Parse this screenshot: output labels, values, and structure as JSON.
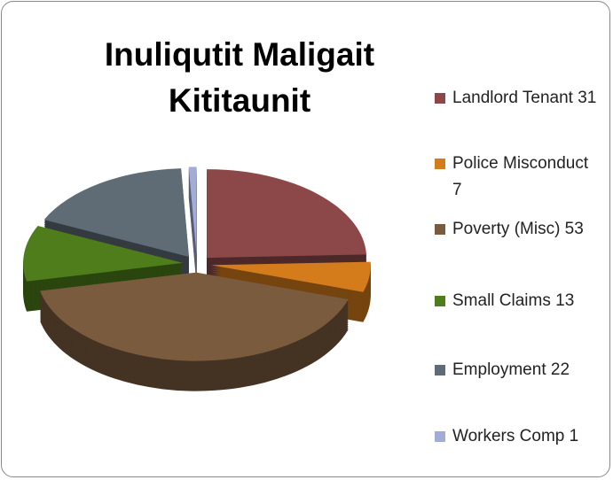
{
  "chart_data": {
    "type": "pie",
    "title": "Inuliqutit Maligait Kititaunit",
    "categories": [
      "Landlord Tenant 31",
      "Police Misconduct 7",
      "Poverty (Misc) 53",
      "Small Claims 13",
      "Employment 22",
      "Workers Comp 1"
    ],
    "values": [
      31,
      7,
      53,
      13,
      22,
      1
    ],
    "colors": [
      "#8c4848",
      "#d47c1c",
      "#7b5b3d",
      "#4f7d1b",
      "#5f6c75",
      "#a3abd8"
    ],
    "legend": "right"
  }
}
